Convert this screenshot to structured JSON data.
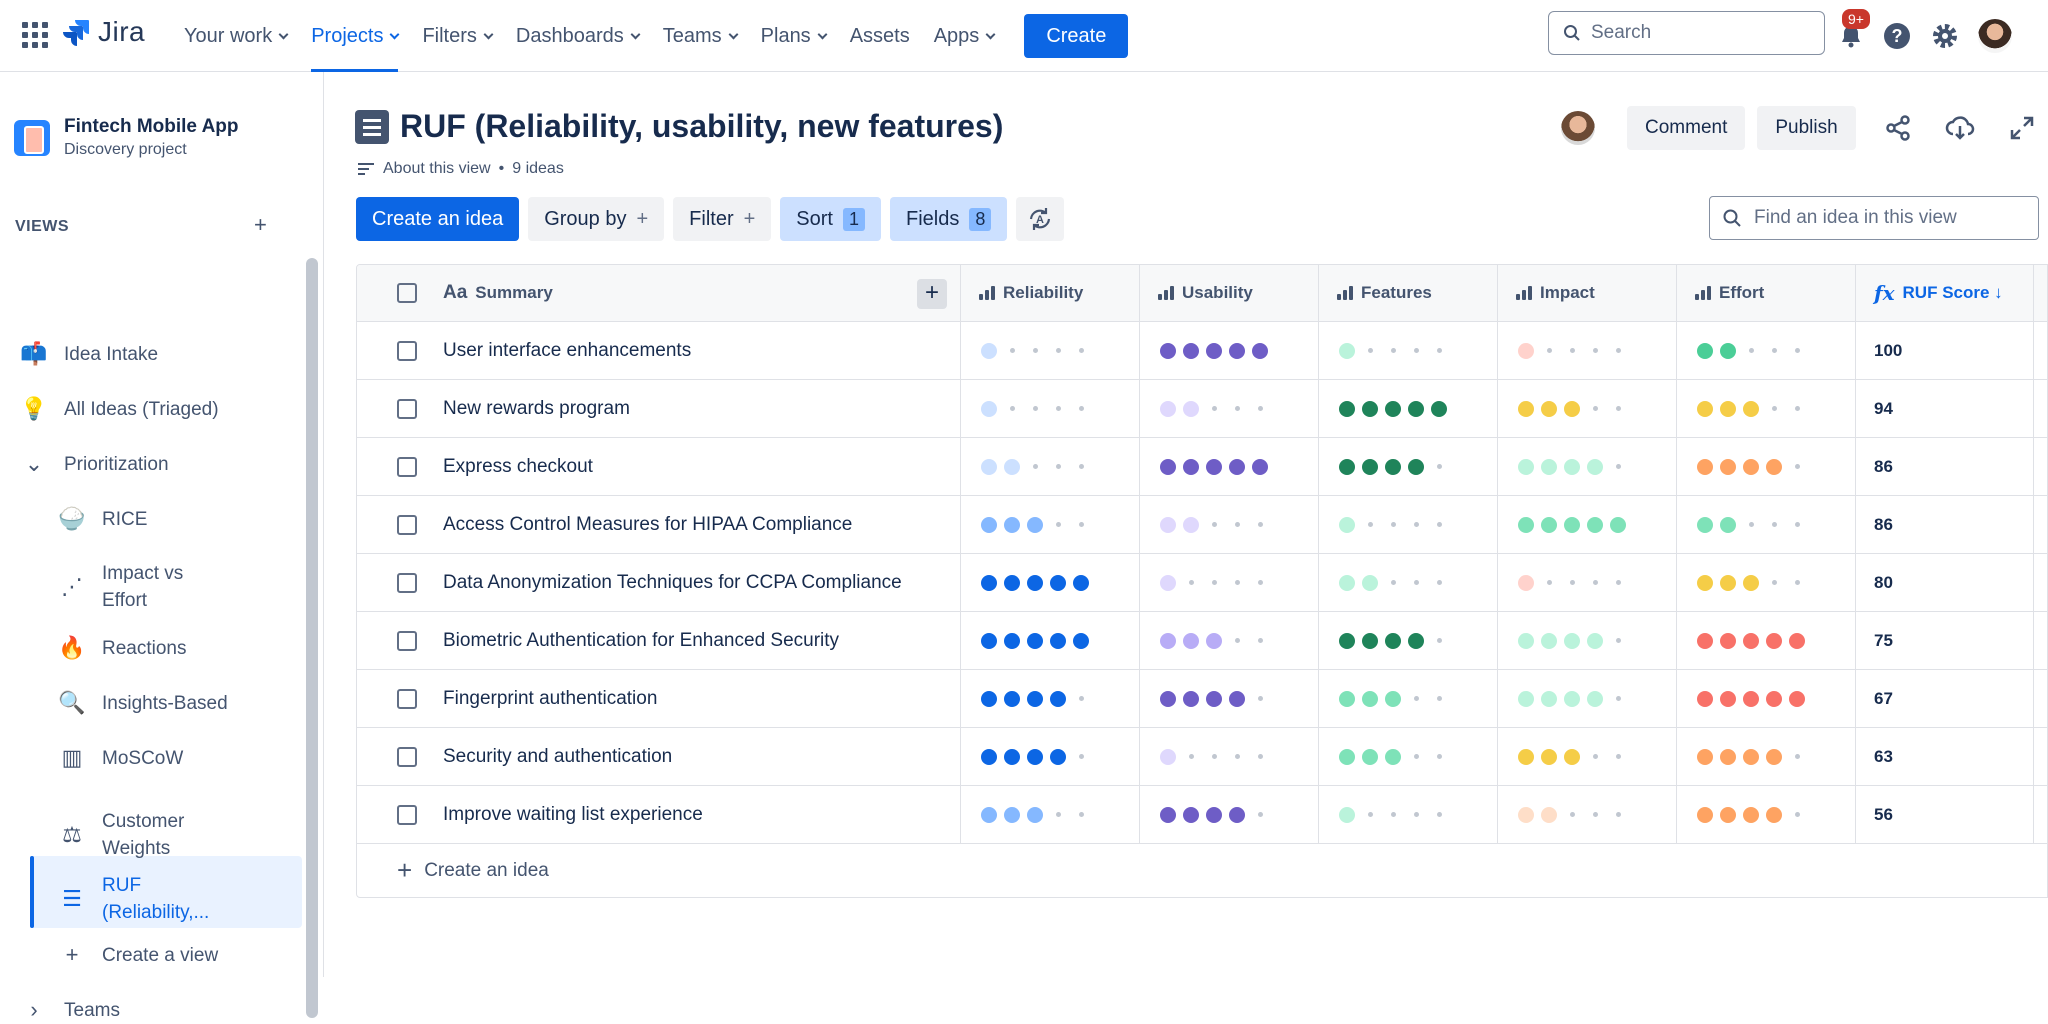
{
  "topnav": {
    "logo": "Jira",
    "items": [
      {
        "label": "Your work",
        "chevron": true
      },
      {
        "label": "Projects",
        "chevron": true,
        "active": true
      },
      {
        "label": "Filters",
        "chevron": true
      },
      {
        "label": "Dashboards",
        "chevron": true
      },
      {
        "label": "Teams",
        "chevron": true
      },
      {
        "label": "Plans",
        "chevron": true
      },
      {
        "label": "Assets",
        "chevron": false
      },
      {
        "label": "Apps",
        "chevron": true
      }
    ],
    "create_label": "Create",
    "search_placeholder": "Search",
    "notification_badge": "9+"
  },
  "sidebar": {
    "project_name": "Fintech Mobile App",
    "project_type": "Discovery project",
    "views_heading": "VIEWS",
    "items": [
      {
        "label": "Idea Intake",
        "icon": "mailbox-icon",
        "glyph": "📫",
        "indent": 0
      },
      {
        "label": "All Ideas (Triaged)",
        "icon": "lightbulb-icon",
        "glyph": "💡",
        "indent": 0
      },
      {
        "label": "Prioritization",
        "icon": "chevron-down-icon",
        "glyph": "⌄",
        "indent": 0
      },
      {
        "label": "RICE",
        "icon": "rice-bowl-icon",
        "glyph": "🍚",
        "indent": 1
      },
      {
        "label": "Impact vs",
        "label2": "Effort",
        "icon": "scatter-plot-icon",
        "glyph": "⋰",
        "indent": 1
      },
      {
        "label": "Reactions",
        "icon": "fire-icon",
        "glyph": "🔥",
        "indent": 1
      },
      {
        "label": "Insights-Based",
        "icon": "magnifier-icon",
        "glyph": "🔍",
        "indent": 1
      },
      {
        "label": "MoSCoW",
        "icon": "board-icon",
        "glyph": "▥",
        "indent": 1
      },
      {
        "label": "Customer",
        "label2": "Weights",
        "icon": "scales-icon",
        "glyph": "⚖",
        "indent": 1
      },
      {
        "label": "RUF",
        "label2": "(Reliability,...",
        "icon": "list-icon",
        "glyph": "☰",
        "indent": 1,
        "active": true
      },
      {
        "label": "Create a view",
        "icon": "plus-icon",
        "glyph": "+",
        "indent": 1
      },
      {
        "label": "Teams",
        "icon": "chevron-right-icon",
        "glyph": "›",
        "indent": 0
      }
    ]
  },
  "header": {
    "title": "RUF (Reliability, usability, new features)",
    "about": "About this view",
    "idea_count": "9 ideas",
    "comment_label": "Comment",
    "publish_label": "Publish"
  },
  "toolbar": {
    "create_label": "Create an idea",
    "group_label": "Group by",
    "filter_label": "Filter",
    "sort_label": "Sort",
    "sort_count": "1",
    "fields_label": "Fields",
    "fields_count": "8",
    "find_placeholder": "Find an idea in this view"
  },
  "table": {
    "columns": [
      "Summary",
      "Reliability",
      "Usability",
      "Features",
      "Impact",
      "Effort",
      "RUF Score ↓"
    ],
    "summary_prefix": "Aa",
    "score_prefix": "fx",
    "colors": {
      "reliability": [
        "#cce0ff",
        "#cce0ff",
        "#85b8ff",
        "#0c66e4",
        "#0c66e4"
      ],
      "usability": [
        "#dfd8fd",
        "#dfd8fd",
        "#b8acf6",
        "#6e5dc6",
        "#6e5dc6"
      ],
      "features": [
        "#baf3db",
        "#baf3db",
        "#4bce97",
        "#1f845a",
        "#1f845a"
      ],
      "impact": [
        "#ffd2cc",
        "#f8e6a0",
        "#f8e6a0",
        "#baf3db",
        "#7ee2b8"
      ],
      "effort": [
        "#7ee2b8",
        "#f8e6a0",
        "#fec195",
        "#fec195",
        "#fd9891"
      ]
    },
    "rows": [
      {
        "summary": "User interface enhancements",
        "reliability": 1,
        "usability": 5,
        "features": 1,
        "impact": 1,
        "effort": 2,
        "score": "100",
        "c": {
          "reliability": "#cce0ff",
          "usability": "#6e5dc6",
          "features": "#baf3db",
          "impact": "#ffd2cc",
          "effort": "#4bce97"
        }
      },
      {
        "summary": "New rewards program",
        "reliability": 1,
        "usability": 2,
        "features": 5,
        "impact": 3,
        "effort": 3,
        "score": "94",
        "c": {
          "reliability": "#cce0ff",
          "usability": "#dfd8fd",
          "features": "#1f845a",
          "impact": "#f5cd47",
          "effort": "#f5cd47"
        }
      },
      {
        "summary": "Express checkout",
        "reliability": 2,
        "usability": 5,
        "features": 4,
        "impact": 4,
        "effort": 4,
        "score": "86",
        "c": {
          "reliability": "#cce0ff",
          "usability": "#6e5dc6",
          "features": "#1f845a",
          "impact": "#baf3db",
          "effort": "#fea362"
        }
      },
      {
        "summary": "Access Control Measures for HIPAA Compliance",
        "reliability": 3,
        "usability": 2,
        "features": 1,
        "impact": 5,
        "effort": 2,
        "score": "86",
        "c": {
          "reliability": "#85b8ff",
          "usability": "#dfd8fd",
          "features": "#baf3db",
          "impact": "#7ee2b8",
          "effort": "#7ee2b8"
        }
      },
      {
        "summary": "Data Anonymization Techniques for CCPA Compliance",
        "reliability": 5,
        "usability": 1,
        "features": 2,
        "impact": 1,
        "effort": 3,
        "score": "80",
        "c": {
          "reliability": "#0c66e4",
          "usability": "#dfd8fd",
          "features": "#baf3db",
          "impact": "#ffd2cc",
          "effort": "#f5cd47"
        }
      },
      {
        "summary": "Biometric Authentication for Enhanced Security",
        "reliability": 5,
        "usability": 3,
        "features": 4,
        "impact": 4,
        "effort": 5,
        "score": "75",
        "c": {
          "reliability": "#0c66e4",
          "usability": "#b8acf6",
          "features": "#1f845a",
          "impact": "#baf3db",
          "effort": "#f87168"
        }
      },
      {
        "summary": "Fingerprint authentication",
        "reliability": 4,
        "usability": 4,
        "features": 3,
        "impact": 4,
        "effort": 5,
        "score": "67",
        "c": {
          "reliability": "#0c66e4",
          "usability": "#6e5dc6",
          "features": "#7ee2b8",
          "impact": "#baf3db",
          "effort": "#f87168"
        }
      },
      {
        "summary": "Security and authentication",
        "reliability": 4,
        "usability": 1,
        "features": 3,
        "impact": 3,
        "effort": 4,
        "score": "63",
        "c": {
          "reliability": "#0c66e4",
          "usability": "#dfd8fd",
          "features": "#7ee2b8",
          "impact": "#f5cd47",
          "effort": "#fea362"
        }
      },
      {
        "summary": "Improve waiting list experience",
        "reliability": 3,
        "usability": 4,
        "features": 1,
        "impact": 2,
        "effort": 4,
        "score": "56",
        "c": {
          "reliability": "#85b8ff",
          "usability": "#6e5dc6",
          "features": "#baf3db",
          "impact": "#fedec8",
          "effort": "#fea362"
        }
      }
    ],
    "create_row_label": "Create an idea"
  }
}
